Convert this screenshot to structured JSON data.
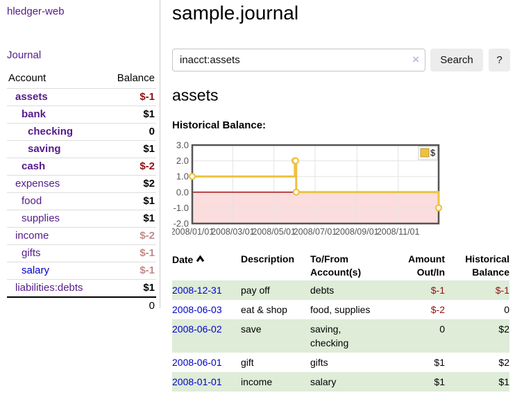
{
  "sidebar": {
    "brand": "hledger-web",
    "nav_journal": "Journal",
    "accounts_table": {
      "header_account": "Account",
      "header_balance": "Balance",
      "rows": [
        {
          "name": "assets",
          "balance": "$-1",
          "indent": 1,
          "matched": true,
          "neg": true,
          "dim": false,
          "unvisited": false
        },
        {
          "name": "bank",
          "balance": "$1",
          "indent": 2,
          "matched": true,
          "neg": false,
          "dim": false,
          "unvisited": false
        },
        {
          "name": "checking",
          "balance": "0",
          "indent": 3,
          "matched": true,
          "neg": false,
          "dim": false,
          "unvisited": false
        },
        {
          "name": "saving",
          "balance": "$1",
          "indent": 3,
          "matched": true,
          "neg": false,
          "dim": false,
          "unvisited": false
        },
        {
          "name": "cash",
          "balance": "$-2",
          "indent": 2,
          "matched": true,
          "neg": true,
          "dim": false,
          "unvisited": false
        },
        {
          "name": "expenses",
          "balance": "$2",
          "indent": 1,
          "matched": false,
          "neg": false,
          "dim": false,
          "unvisited": false
        },
        {
          "name": "food",
          "balance": "$1",
          "indent": 2,
          "matched": false,
          "neg": false,
          "dim": false,
          "unvisited": false
        },
        {
          "name": "supplies",
          "balance": "$1",
          "indent": 2,
          "matched": false,
          "neg": false,
          "dim": false,
          "unvisited": false
        },
        {
          "name": "income",
          "balance": "$-2",
          "indent": 1,
          "matched": false,
          "neg": true,
          "dim": true,
          "unvisited": false
        },
        {
          "name": "gifts",
          "balance": "$-1",
          "indent": 2,
          "matched": false,
          "neg": true,
          "dim": true,
          "unvisited": false
        },
        {
          "name": "salary",
          "balance": "$-1",
          "indent": 2,
          "matched": false,
          "neg": true,
          "dim": true,
          "unvisited": true
        },
        {
          "name": "liabilities:debts",
          "balance": "$1",
          "indent": 1,
          "matched": false,
          "neg": false,
          "dim": false,
          "unvisited": false
        }
      ],
      "total": "0"
    }
  },
  "main": {
    "title": "sample.journal",
    "search": {
      "value": "inacct:assets",
      "clear": "×",
      "search_label": "Search",
      "help_label": "?"
    },
    "account_heading": "assets",
    "chart_label": "Historical Balance:",
    "register": {
      "headers": {
        "date": "Date",
        "description": "Description",
        "tofrom": [
          "To/From",
          "Account(s)"
        ],
        "amount": [
          "Amount",
          "Out/In"
        ],
        "balance": [
          "Historical",
          "Balance"
        ]
      },
      "rows": [
        {
          "date": "2008-12-31",
          "description": "pay off",
          "accounts": "debts",
          "amount": "$-1",
          "amount_neg": true,
          "balance": "$-1",
          "balance_neg": true,
          "shaded": true
        },
        {
          "date": "2008-06-03",
          "description": "eat & shop",
          "accounts": "food, supplies",
          "amount": "$-2",
          "amount_neg": true,
          "balance": "0",
          "balance_neg": false,
          "shaded": false
        },
        {
          "date": "2008-06-02",
          "description": "save",
          "accounts": "saving, checking",
          "amount": "0",
          "amount_neg": false,
          "balance": "$2",
          "balance_neg": false,
          "shaded": true
        },
        {
          "date": "2008-06-01",
          "description": "gift",
          "accounts": "gifts",
          "amount": "$1",
          "amount_neg": false,
          "balance": "$2",
          "balance_neg": false,
          "shaded": false
        },
        {
          "date": "2008-01-01",
          "description": "income",
          "accounts": "salary",
          "amount": "$1",
          "amount_neg": false,
          "balance": "$1",
          "balance_neg": false,
          "shaded": true
        }
      ]
    }
  },
  "chart_data": {
    "type": "line",
    "step": true,
    "title": "Historical Balance:",
    "x_range": [
      "2008-01-01",
      "2008-12-31"
    ],
    "ylim": [
      -2,
      3
    ],
    "y_ticks": [
      "3.0",
      "2.0",
      "1.0",
      "0.0",
      "-1.0",
      "-2.0"
    ],
    "x_tick_labels": [
      "2008/01/01",
      "2008/03/01",
      "2008/05/01",
      "2008/07/01",
      "2008/09/01",
      "2008/11/01"
    ],
    "x_tick_dates": [
      "2008-01-01",
      "2008-03-01",
      "2008-05-01",
      "2008-07-01",
      "2008-09-01",
      "2008-11-01"
    ],
    "series": [
      {
        "name": "$",
        "color": "#edc240",
        "points": [
          {
            "date": "2008-01-01",
            "value": 1
          },
          {
            "date": "2008-06-01",
            "value": 2
          },
          {
            "date": "2008-06-02",
            "value": 2
          },
          {
            "date": "2008-06-03",
            "value": 0
          },
          {
            "date": "2008-12-31",
            "value": -1
          }
        ]
      }
    ],
    "legend": {
      "label": "$",
      "position": "top-right"
    },
    "grid": true,
    "zero_line_color": "#990000",
    "negative_region_color": "#fbdddd",
    "border_color": "#545454",
    "gridline_color": "#e3e3e3",
    "tick_label_color": "#545454"
  },
  "colors": {
    "link_purple": "#551a8b",
    "link_blue": "#0000cc",
    "negative": "#911111",
    "negative_dim": "#c48989",
    "row_green": "#deecd8",
    "series_gold": "#edc240"
  }
}
